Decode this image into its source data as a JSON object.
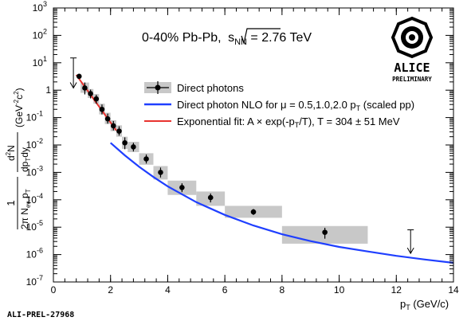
{
  "chart_data": {
    "type": "scatter",
    "title": "0-40%  Pb-Pb, √s_NN = 2.76 TeV",
    "title_parts": {
      "lead": "0-40%  Pb-Pb, ",
      "root": "s",
      "sub": "NN",
      "tail": " = 2.76 TeV"
    },
    "xlabel": {
      "main": "p",
      "sub": "T",
      "unit": " (GeV/c)"
    },
    "ylabel": {
      "frac_num": "1",
      "frac_den": "2π N",
      "frac_den_sub": "ev.",
      "frac_den_tail": "p",
      "frac_den_tail_sub": "T",
      "d_num": "d",
      "d_num_sup": "2",
      "d_num_tail": "N",
      "d_den": "dp",
      "d_den_sub": "T",
      "d_den_tail": "dy",
      "unit_lead": "(GeV",
      "unit_sup": "-2",
      "unit_mid": "c",
      "unit_sup2": "2",
      "unit_tail": ")"
    },
    "xlim": [
      0,
      14
    ],
    "ylim_log10": [
      -7,
      3
    ],
    "y_scale": "log",
    "x_ticks": [
      "0",
      "2",
      "4",
      "6",
      "8",
      "10",
      "12",
      "14"
    ],
    "y_ticks": [
      {
        "base": "10",
        "exp": "3"
      },
      {
        "base": "10",
        "exp": "2"
      },
      {
        "base": "10",
        "exp": "1"
      },
      {
        "base": "",
        "exp": "",
        "label": "1"
      },
      {
        "base": "10",
        "exp": "-1"
      },
      {
        "base": "10",
        "exp": "-2"
      },
      {
        "base": "10",
        "exp": "-3"
      },
      {
        "base": "10",
        "exp": "-4"
      },
      {
        "base": "10",
        "exp": "-5"
      },
      {
        "base": "10",
        "exp": "-6"
      },
      {
        "base": "10",
        "exp": "-7"
      }
    ],
    "legend": {
      "placement": "center",
      "entries": [
        {
          "text": "Direct photons",
          "marker": "point"
        },
        {
          "text_lead": "Direct photon NLO for μ = 0.5,1.0,2.0 p",
          "text_sub": "T",
          "text_tail": " (scaled pp)",
          "marker": "line",
          "color": "#1f3fff"
        },
        {
          "text_lead": "Exponential fit: A × exp(-p",
          "text_sub": "T",
          "text_tail": "/T), T = 304 ± 51 MeV",
          "marker": "line",
          "color": "#e8332f"
        }
      ]
    },
    "series": [
      {
        "name": "Direct photons",
        "points": [
          {
            "x": 1.1,
            "y": 1.2,
            "xsys": [
              0.95,
              1.25
            ],
            "ysys": [
              0.8,
              1.9
            ],
            "yerr": [
              0.7,
              1.9
            ]
          },
          {
            "x": 1.3,
            "y": 0.75,
            "xsys": [
              1.2,
              1.4
            ],
            "ysys": [
              0.52,
              1.1
            ],
            "yerr": [
              0.5,
              1.05
            ]
          },
          {
            "x": 1.5,
            "y": 0.48,
            "xsys": [
              1.4,
              1.6
            ],
            "ysys": [
              0.32,
              0.72
            ],
            "yerr": [
              0.32,
              0.68
            ]
          },
          {
            "x": 1.7,
            "y": 0.2,
            "xsys": [
              1.6,
              1.8
            ],
            "ysys": [
              0.13,
              0.32
            ],
            "yerr": [
              0.13,
              0.3
            ]
          },
          {
            "x": 1.9,
            "y": 0.09,
            "xsys": [
              1.8,
              2.0
            ],
            "ysys": [
              0.058,
              0.15
            ],
            "yerr": [
              0.06,
              0.14
            ]
          },
          {
            "x": 2.1,
            "y": 0.05,
            "xsys": [
              2.0,
              2.2
            ],
            "ysys": [
              0.032,
              0.08
            ],
            "yerr": [
              0.034,
              0.075
            ]
          },
          {
            "x": 2.3,
            "y": 0.032,
            "xsys": [
              2.2,
              2.4
            ],
            "ysys": [
              0.02,
              0.052
            ],
            "yerr": [
              0.022,
              0.048
            ]
          },
          {
            "x": 2.5,
            "y": 0.012,
            "xsys": [
              2.4,
              2.6
            ],
            "ysys": [
              0.0072,
              0.02
            ],
            "yerr": [
              0.007,
              0.019
            ]
          },
          {
            "x": 2.8,
            "y": 0.0085,
            "xsys": [
              2.6,
              3.0
            ],
            "ysys": [
              0.0055,
              0.013
            ],
            "yerr": [
              0.0058,
              0.012
            ]
          },
          {
            "x": 3.25,
            "y": 0.0031,
            "xsys": [
              3.0,
              3.5
            ],
            "ysys": [
              0.0019,
              0.005
            ],
            "yerr": [
              0.0021,
              0.0045
            ]
          },
          {
            "x": 3.75,
            "y": 0.001,
            "xsys": [
              3.5,
              4.0
            ],
            "ysys": [
              0.00055,
              0.0017
            ],
            "yerr": [
              0.00065,
              0.0015
            ]
          },
          {
            "x": 4.5,
            "y": 0.00028,
            "xsys": [
              4.0,
              5.0
            ],
            "ysys": [
              0.00015,
              0.0005
            ],
            "yerr": [
              0.00019,
              0.0004
            ]
          },
          {
            "x": 5.5,
            "y": 0.00012,
            "xsys": [
              5.0,
              6.0
            ],
            "ysys": [
              6e-05,
              0.0002
            ],
            "yerr": [
              8e-05,
              0.00017
            ]
          },
          {
            "x": 7.0,
            "y": 3.6e-05,
            "xsys": [
              6.0,
              8.0
            ],
            "ysys": [
              2.2e-05,
              6e-05
            ],
            "yerr": [
              2.8e-05,
              4.6e-05
            ]
          },
          {
            "x": 9.5,
            "y": 6.5e-06,
            "xsys": [
              8.0,
              11.0
            ],
            "ysys": [
              2.5e-06,
              1.1e-05
            ],
            "yerr": [
              3.8e-06,
              9.5e-06
            ]
          }
        ],
        "upper_limits": [
          {
            "x": 0.7,
            "y_top": 15,
            "y_bottom": 1.2
          },
          {
            "x": 12.5,
            "y_top": 8e-06,
            "y_bottom": 1.1e-06
          }
        ],
        "first_point": {
          "x": 0.9,
          "y": 3.2
        }
      },
      {
        "name": "Direct photon NLO for μ = 0.5,1.0,2.0 p_T (scaled pp)",
        "color": "#1f3fff",
        "x": [
          2.0,
          2.5,
          3.0,
          3.5,
          4.0,
          5.0,
          6.0,
          7.0,
          8.0,
          9.0,
          10.0,
          11.0,
          12.0,
          13.0,
          14.0
        ],
        "y": [
          0.012,
          0.0042,
          0.0016,
          0.00068,
          0.00031,
          8.2e-05,
          2.8e-05,
          1.15e-05,
          5.5e-06,
          3.1e-06,
          1.9e-06,
          1.3e-06,
          9e-07,
          6.6e-07,
          5e-07
        ]
      },
      {
        "name": "Exponential fit",
        "color": "#e8332f",
        "x": [
          0.8,
          2.2
        ],
        "y": [
          3.6,
          0.034
        ]
      }
    ],
    "colors": {
      "sys_box": "#c8c8c8",
      "nlo": "#1f3fff",
      "fit": "#e8332f",
      "marker": "#000000"
    }
  },
  "logo": {
    "line1": "ALICE",
    "line2": "PRELIMINARY"
  },
  "footer": {
    "id": "ALI-PREL-27968"
  }
}
